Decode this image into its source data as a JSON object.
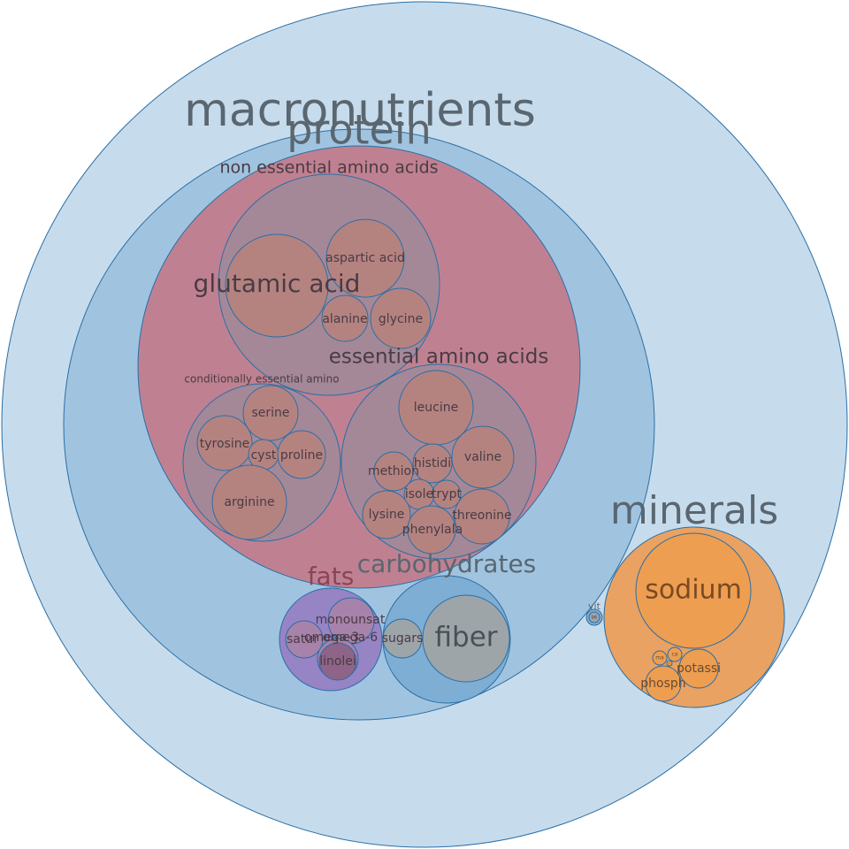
{
  "groups": {
    "macronutrients": "macronutrients",
    "protein": "protein",
    "non_essential": "non essential amino acids",
    "essential": "essential amino acids",
    "conditionally_essential": "conditionally essential amino",
    "carbohydrates": "carbohydrates",
    "fats": "fats",
    "minerals": "minerals",
    "vitamins": "vit"
  },
  "nutrients": {
    "glutamic_acid": "glutamic acid",
    "aspartic_acid": "aspartic acid",
    "alanine": "alanine",
    "glycine": "glycine",
    "serine": "serine",
    "tyrosine": "tyrosine",
    "cystine": "cyst",
    "proline": "proline",
    "arginine": "arginine",
    "leucine": "leucine",
    "histidine": "histidi",
    "valine": "valine",
    "methionine": "methion",
    "isoleucine": "isole",
    "tryptophan": "trypt",
    "lysine": "lysine",
    "threonine": "threonine",
    "phenylalanine": "phenylala",
    "fiber": "fiber",
    "sugars": "sugars",
    "monounsaturated": "monounsat",
    "saturated": "satur",
    "omega6": "omega-6",
    "omega3": "omega-3",
    "linoleic": "linolei",
    "sodium": "sodium",
    "potassium": "potassi",
    "phosphorus": "phosph",
    "calcium": "ca",
    "magnesium": "ma",
    "iron": "ir",
    "vitamin_b6": "b6"
  },
  "colors": {
    "macronutrients_fill": "#c6dcec",
    "protein_fill": "#a0c4e0",
    "protein_inner_fill": "#bf8191",
    "amino_group_fill": "#a58897",
    "amino_leaf_fill": "#b48380",
    "carbohydrates_fill": "#7eaed4",
    "fiber_fill": "#9ea5a8",
    "fats_fill": "#9684c5",
    "fat_leaf_fill": "#a783ab",
    "minerals_fill": "#e9a262",
    "sodium_fill": "#ee9e50",
    "stroke": "#2b6ea6",
    "label_grey": "#5a6670",
    "label_dark": "#4a3b44",
    "label_fats": "#8a4358"
  }
}
